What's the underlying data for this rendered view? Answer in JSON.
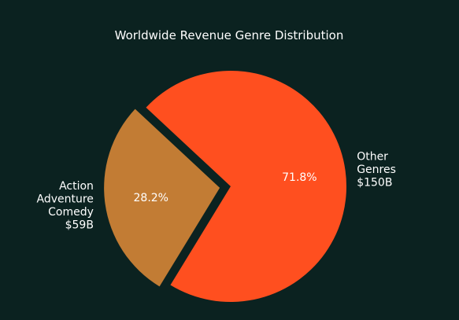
{
  "chart_data": {
    "type": "pie",
    "title": "Worldwide Revenue Genre Distribution",
    "slices": [
      {
        "name": "Other Genres",
        "label_lines": [
          "Other",
          "Genres",
          "$150B"
        ],
        "value": 150,
        "percent_label": "71.8%",
        "color": "#ff4f1f",
        "exploded": false
      },
      {
        "name": "Action Adventure Comedy",
        "label_lines": [
          "Action",
          "Adventure",
          "Comedy",
          "$59B"
        ],
        "value": 59,
        "percent_label": "28.2%",
        "color": "#c27c34",
        "exploded": true
      }
    ],
    "background": "#0b2220"
  }
}
